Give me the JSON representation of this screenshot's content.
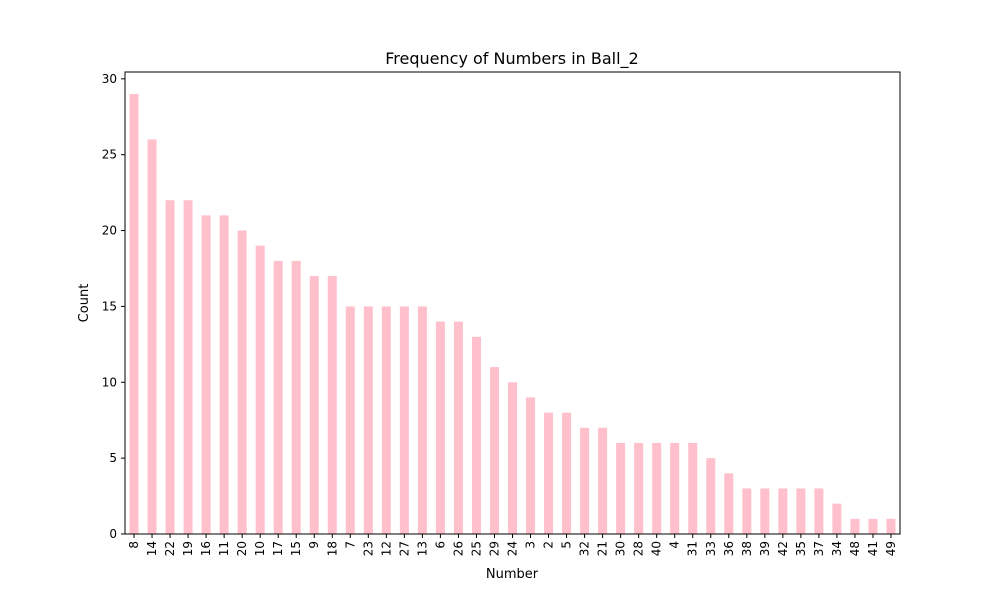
{
  "chart_data": {
    "type": "bar",
    "title": "Frequency of Numbers in Ball_2",
    "xlabel": "Number",
    "ylabel": "Count",
    "categories": [
      "8",
      "14",
      "22",
      "19",
      "16",
      "11",
      "20",
      "10",
      "17",
      "15",
      "9",
      "18",
      "7",
      "23",
      "12",
      "27",
      "13",
      "6",
      "26",
      "25",
      "29",
      "24",
      "3",
      "2",
      "5",
      "32",
      "21",
      "30",
      "28",
      "40",
      "4",
      "31",
      "33",
      "36",
      "38",
      "39",
      "42",
      "35",
      "37",
      "34",
      "48",
      "41",
      "49"
    ],
    "values": [
      29,
      26,
      22,
      22,
      21,
      21,
      20,
      19,
      18,
      18,
      17,
      17,
      15,
      15,
      15,
      15,
      15,
      14,
      14,
      13,
      11,
      10,
      9,
      8,
      8,
      7,
      7,
      6,
      6,
      6,
      6,
      6,
      5,
      4,
      3,
      3,
      3,
      3,
      3,
      2,
      1,
      1,
      1
    ],
    "ylim": [
      0,
      30.45
    ],
    "yticks": [
      "0",
      "5",
      "10",
      "15",
      "20",
      "25",
      "30"
    ],
    "bar_color": "#ffc0cb",
    "grid": false,
    "legend": "none"
  }
}
